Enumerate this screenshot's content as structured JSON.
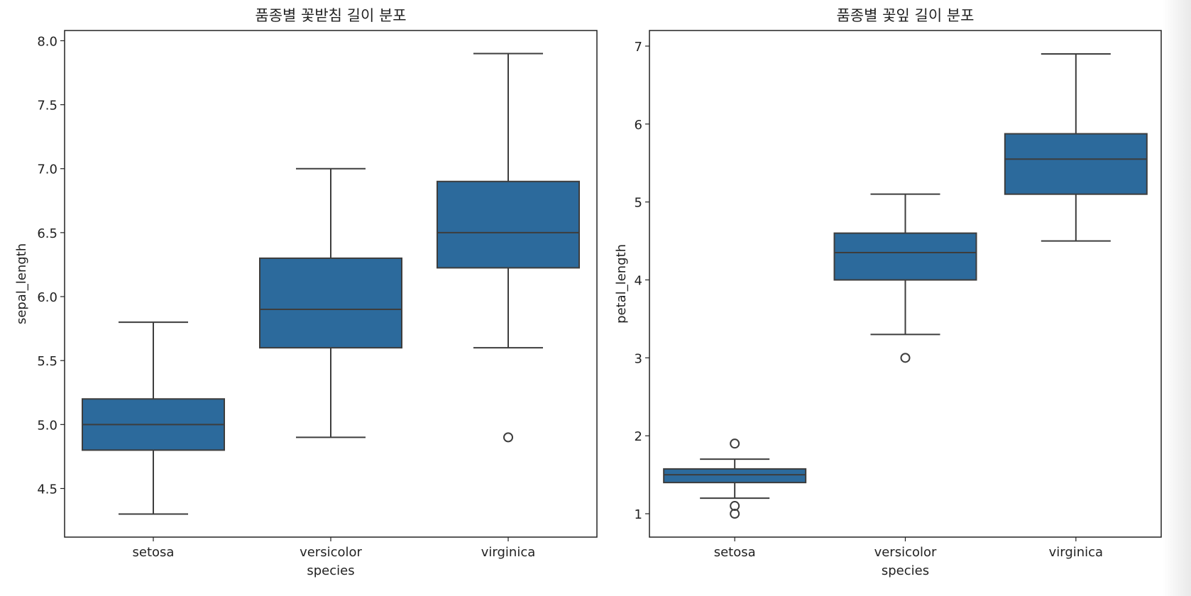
{
  "chart_data": [
    {
      "type": "box",
      "title": "품종별 꽃받침 길이 분포",
      "xlabel": "species",
      "ylabel": "sepal_length",
      "categories": [
        "setosa",
        "versicolor",
        "virginica"
      ],
      "ylim": [
        4.12,
        8.08
      ],
      "yticks": [
        "4.5",
        "5.0",
        "5.5",
        "6.0",
        "6.5",
        "7.0",
        "7.5",
        "8.0"
      ],
      "box_color": "#2c6a9c",
      "line_color": "#3d3d3d",
      "boxes": [
        {
          "category": "setosa",
          "whisker_low": 4.3,
          "q1": 4.8,
          "median": 5.0,
          "q3": 5.2,
          "whisker_high": 5.8,
          "outliers": []
        },
        {
          "category": "versicolor",
          "whisker_low": 4.9,
          "q1": 5.6,
          "median": 5.9,
          "q3": 6.3,
          "whisker_high": 7.0,
          "outliers": []
        },
        {
          "category": "virginica",
          "whisker_low": 5.6,
          "q1": 6.225,
          "median": 6.5,
          "q3": 6.9,
          "whisker_high": 7.9,
          "outliers": [
            4.9
          ]
        }
      ]
    },
    {
      "type": "box",
      "title": "품종별 꽃잎 길이 분포",
      "xlabel": "species",
      "ylabel": "petal_length",
      "categories": [
        "setosa",
        "versicolor",
        "virginica"
      ],
      "ylim": [
        0.7,
        7.2
      ],
      "yticks": [
        "1",
        "2",
        "3",
        "4",
        "5",
        "6",
        "7"
      ],
      "box_color": "#2c6a9c",
      "line_color": "#3d3d3d",
      "boxes": [
        {
          "category": "setosa",
          "whisker_low": 1.2,
          "q1": 1.4,
          "median": 1.5,
          "q3": 1.575,
          "whisker_high": 1.7,
          "outliers": [
            1.9,
            1.1,
            1.0
          ]
        },
        {
          "category": "versicolor",
          "whisker_low": 3.3,
          "q1": 4.0,
          "median": 4.35,
          "q3": 4.6,
          "whisker_high": 5.1,
          "outliers": [
            3.0
          ]
        },
        {
          "category": "virginica",
          "whisker_low": 4.5,
          "q1": 5.1,
          "median": 5.55,
          "q3": 5.875,
          "whisker_high": 6.9,
          "outliers": []
        }
      ]
    }
  ]
}
